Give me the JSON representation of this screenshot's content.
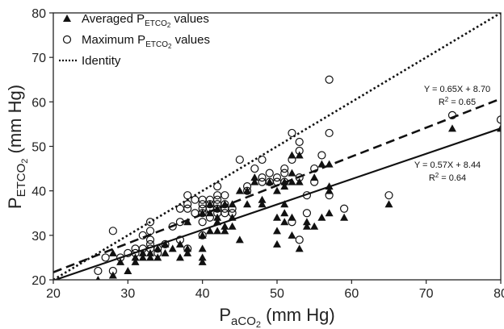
{
  "chart_data": {
    "type": "scatter",
    "xlim": [
      20,
      80
    ],
    "ylim": [
      20,
      80
    ],
    "xticks": [
      20,
      30,
      40,
      50,
      60,
      70,
      80
    ],
    "yticks": [
      20,
      30,
      40,
      50,
      60,
      70,
      80
    ],
    "xlabel": {
      "main": "P",
      "sub": "aCO",
      "sub2": "2",
      "rest": " (mm Hg)"
    },
    "ylabel": {
      "main": "P",
      "sub": "ETCO",
      "sub2": "2",
      "rest": " (mm Hg)"
    },
    "grid": false,
    "legend": {
      "placement": "top-left",
      "entries": [
        {
          "marker": "filled-triangle",
          "main": "Averaged P",
          "sub": "ETCO",
          "sub2": "2",
          "rest": " values"
        },
        {
          "marker": "open-circle",
          "main": "Maximum P",
          "sub": "ETCO",
          "sub2": "2",
          "rest": " values"
        },
        {
          "marker": "dotted-line",
          "main": "Identity",
          "sub": "",
          "sub2": "",
          "rest": ""
        }
      ]
    },
    "lines": [
      {
        "style": "dotted",
        "name": "Identity",
        "slope": 1,
        "intercept": 0
      },
      {
        "style": "dashed",
        "slope": 0.65,
        "intercept": 8.7
      },
      {
        "style": "solid",
        "slope": 0.57,
        "intercept": 8.44
      }
    ],
    "annotations": [
      {
        "for": "dashed",
        "equation": "Y = 0.65X + 8.70",
        "r2_prefix": "R",
        "r2_sup": "2",
        "r2_rest": " = 0.65"
      },
      {
        "for": "solid",
        "equation": "Y = 0.57X + 8.44",
        "r2_prefix": "R",
        "r2_sup": "2",
        "r2_rest": " = 0.64"
      }
    ],
    "series": [
      {
        "marker": "filled-triangle",
        "points": [
          [
            26,
            20
          ],
          [
            28,
            21
          ],
          [
            28,
            26
          ],
          [
            29,
            24
          ],
          [
            30,
            22
          ],
          [
            31,
            24
          ],
          [
            31,
            25
          ],
          [
            32,
            25
          ],
          [
            32,
            26
          ],
          [
            33,
            25
          ],
          [
            33,
            26
          ],
          [
            34,
            25
          ],
          [
            34,
            27
          ],
          [
            35,
            26
          ],
          [
            35,
            28
          ],
          [
            36,
            27
          ],
          [
            37,
            25
          ],
          [
            37,
            28
          ],
          [
            38,
            26
          ],
          [
            38,
            27
          ],
          [
            38,
            33
          ],
          [
            40,
            24
          ],
          [
            40,
            25
          ],
          [
            40,
            27
          ],
          [
            40,
            30
          ],
          [
            40,
            35
          ],
          [
            41,
            31
          ],
          [
            41,
            35
          ],
          [
            41,
            37
          ],
          [
            42,
            31
          ],
          [
            42,
            33
          ],
          [
            42,
            34
          ],
          [
            42,
            36
          ],
          [
            43,
            31
          ],
          [
            43,
            32
          ],
          [
            43,
            37
          ],
          [
            44,
            32
          ],
          [
            44,
            34
          ],
          [
            44,
            37
          ],
          [
            45,
            29
          ],
          [
            45,
            40
          ],
          [
            46,
            37
          ],
          [
            46,
            40
          ],
          [
            47,
            42
          ],
          [
            47,
            43
          ],
          [
            48,
            37
          ],
          [
            48,
            38
          ],
          [
            49,
            42
          ],
          [
            50,
            28
          ],
          [
            50,
            31
          ],
          [
            50,
            34
          ],
          [
            50,
            40
          ],
          [
            51,
            33
          ],
          [
            51,
            35
          ],
          [
            51,
            37
          ],
          [
            51,
            41
          ],
          [
            51,
            42
          ],
          [
            52,
            30
          ],
          [
            52,
            34
          ],
          [
            52,
            42
          ],
          [
            52,
            44
          ],
          [
            52,
            48
          ],
          [
            53,
            27
          ],
          [
            53,
            42
          ],
          [
            53,
            48
          ],
          [
            54,
            32
          ],
          [
            54,
            33
          ],
          [
            55,
            32
          ],
          [
            55,
            43
          ],
          [
            56,
            34
          ],
          [
            56,
            46
          ],
          [
            57,
            35
          ],
          [
            57,
            40
          ],
          [
            57,
            41
          ],
          [
            57,
            46
          ],
          [
            59,
            34
          ],
          [
            65,
            37
          ],
          [
            73.5,
            54
          ],
          [
            80,
            54
          ]
        ]
      },
      {
        "marker": "open-circle",
        "points": [
          [
            26,
            22
          ],
          [
            27,
            25
          ],
          [
            28,
            22
          ],
          [
            28,
            31
          ],
          [
            29,
            25
          ],
          [
            30,
            26
          ],
          [
            31,
            26
          ],
          [
            31,
            27
          ],
          [
            32,
            27
          ],
          [
            32,
            30
          ],
          [
            33,
            27
          ],
          [
            33,
            28
          ],
          [
            33,
            29
          ],
          [
            33,
            31
          ],
          [
            33,
            33
          ],
          [
            34,
            26
          ],
          [
            34,
            27
          ],
          [
            35,
            28
          ],
          [
            36,
            32
          ],
          [
            37,
            29
          ],
          [
            37,
            33
          ],
          [
            37,
            36
          ],
          [
            38,
            27
          ],
          [
            38,
            36
          ],
          [
            38,
            37
          ],
          [
            38,
            39
          ],
          [
            39,
            35
          ],
          [
            39,
            38
          ],
          [
            40,
            30
          ],
          [
            40,
            33
          ],
          [
            40,
            35
          ],
          [
            40,
            36
          ],
          [
            40,
            37
          ],
          [
            40,
            38
          ],
          [
            41,
            34
          ],
          [
            41,
            36
          ],
          [
            41,
            37
          ],
          [
            41,
            38
          ],
          [
            42,
            35
          ],
          [
            42,
            36
          ],
          [
            42,
            37
          ],
          [
            42,
            38
          ],
          [
            42,
            39
          ],
          [
            42,
            41
          ],
          [
            43,
            35
          ],
          [
            43,
            36
          ],
          [
            43,
            37
          ],
          [
            43,
            39
          ],
          [
            44,
            35
          ],
          [
            44,
            36
          ],
          [
            45,
            47
          ],
          [
            46,
            40
          ],
          [
            46,
            41
          ],
          [
            47,
            45
          ],
          [
            48,
            42
          ],
          [
            48,
            43
          ],
          [
            48,
            47
          ],
          [
            49,
            42
          ],
          [
            49,
            44
          ],
          [
            50,
            42
          ],
          [
            50,
            43
          ],
          [
            51,
            42
          ],
          [
            51,
            44
          ],
          [
            51,
            45
          ],
          [
            52,
            33
          ],
          [
            52,
            47
          ],
          [
            52,
            53
          ],
          [
            53,
            29
          ],
          [
            53,
            43
          ],
          [
            53,
            49
          ],
          [
            53,
            51
          ],
          [
            54,
            35
          ],
          [
            54,
            39
          ],
          [
            55,
            42
          ],
          [
            55,
            45
          ],
          [
            56,
            48
          ],
          [
            57,
            39
          ],
          [
            57,
            53
          ],
          [
            57,
            65
          ],
          [
            59,
            36
          ],
          [
            65,
            39
          ],
          [
            73.5,
            57
          ],
          [
            80,
            56
          ]
        ]
      }
    ]
  }
}
